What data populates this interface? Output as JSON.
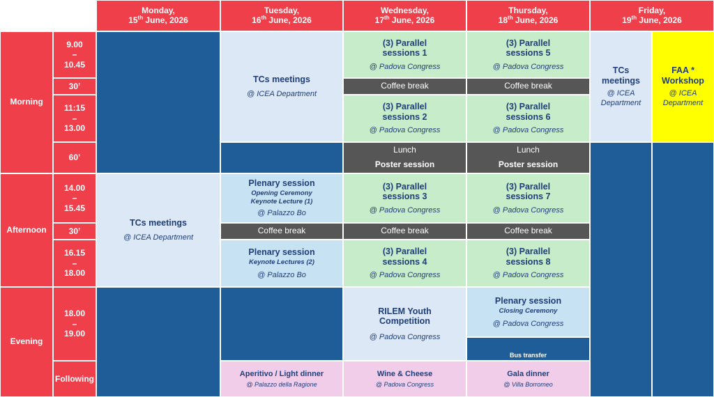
{
  "days": [
    {
      "name": "Monday,",
      "date_num": "15",
      "date_sup": "th",
      "date_rest": " June, 2026"
    },
    {
      "name": "Tuesday,",
      "date_num": "16",
      "date_sup": "th",
      "date_rest": " June, 2026"
    },
    {
      "name": "Wednesday,",
      "date_num": "17",
      "date_sup": "th",
      "date_rest": " June, 2026"
    },
    {
      "name": "Thursday,",
      "date_num": "18",
      "date_sup": "th",
      "date_rest": " June, 2026"
    },
    {
      "name": "Friday,",
      "date_num": "19",
      "date_sup": "th",
      "date_rest": " June, 2026"
    }
  ],
  "periods": {
    "morning": "Morning",
    "afternoon": "Afternoon",
    "evening": "Evening"
  },
  "times": {
    "t1": [
      "9.00",
      "–",
      "10.45"
    ],
    "t2": "30’",
    "t3": [
      "11:15",
      "–",
      "13.00"
    ],
    "t4": "60’",
    "t5": [
      "14.00",
      "–",
      "15.45"
    ],
    "t6": "30’",
    "t7": [
      "16.15",
      "–",
      "18.00"
    ],
    "t8": [
      "18.00",
      "–",
      "19.00"
    ],
    "t9": "Following"
  },
  "events": {
    "tue_tcs": {
      "title": "TCs meetings",
      "venue": "@ ICEA Department"
    },
    "mon_tcs": {
      "title": "TCs meetings",
      "venue": "@ ICEA Department"
    },
    "fri_tcs": {
      "title": [
        "TCs",
        "meetings"
      ],
      "venue": [
        "@ ICEA",
        "Department"
      ]
    },
    "fri_faa": {
      "title": [
        "FAA *",
        "Workshop"
      ],
      "venue": [
        "@ ICEA",
        "Department"
      ]
    },
    "par1": {
      "title": [
        "(3) Parallel",
        "sessions 1"
      ],
      "venue": "@ Padova Congress"
    },
    "par2": {
      "title": [
        "(3) Parallel",
        "sessions 2"
      ],
      "venue": "@ Padova Congress"
    },
    "par3": {
      "title": [
        "(3) Parallel",
        "sessions 3"
      ],
      "venue": "@ Padova Congress"
    },
    "par4": {
      "title": [
        "(3) Parallel",
        "sessions 4"
      ],
      "venue": "@ Padova Congress"
    },
    "par5": {
      "title": [
        "(3) Parallel",
        "sessions 5"
      ],
      "venue": "@ Padova Congress"
    },
    "par6": {
      "title": [
        "(3) Parallel",
        "sessions 6"
      ],
      "venue": "@ Padova Congress"
    },
    "par7": {
      "title": [
        "(3) Parallel",
        "sessions 7"
      ],
      "venue": "@ Padova Congress"
    },
    "par8": {
      "title": [
        "(3) Parallel",
        "sessions 8"
      ],
      "venue": "@ Padova Congress"
    },
    "coffee": "Coffee break",
    "lunch": "Lunch",
    "poster": "Poster session",
    "plen1": {
      "title": "Plenary session",
      "sub": [
        "Opening Ceremony",
        "Keynote Lecture (1)"
      ],
      "venue": "@ Palazzo Bo"
    },
    "plen2": {
      "title": "Plenary session",
      "sub": "Keynote Lectures (2)",
      "venue": "@ Palazzo Bo"
    },
    "plen3": {
      "title": "Plenary session",
      "sub": "Closing Ceremony",
      "venue": "@ Padova Congress"
    },
    "rilem": {
      "title": [
        "RILEM Youth",
        "Competition"
      ],
      "venue": "@ Padova Congress"
    },
    "bus": "Bus transfer",
    "aperitivo": {
      "title": "Aperitivo / Light dinner",
      "venue": "@ Palazzo della Ragione"
    },
    "wine": {
      "title": "Wine & Cheese",
      "venue": "@ Padova Congress"
    },
    "gala": {
      "title": "Gala dinner",
      "venue": "@ Villa Borromeo"
    }
  },
  "colors": {
    "header_red": "#ef3f4b",
    "navy": "#1f5d98",
    "light_blue": "#dce8f5",
    "plenary_blue": "#c6e2f3",
    "green": "#c6ecc9",
    "grey": "#565656",
    "pink": "#f2cde9",
    "yellow": "#ffff00",
    "text_navy": "#1f3e78"
  }
}
